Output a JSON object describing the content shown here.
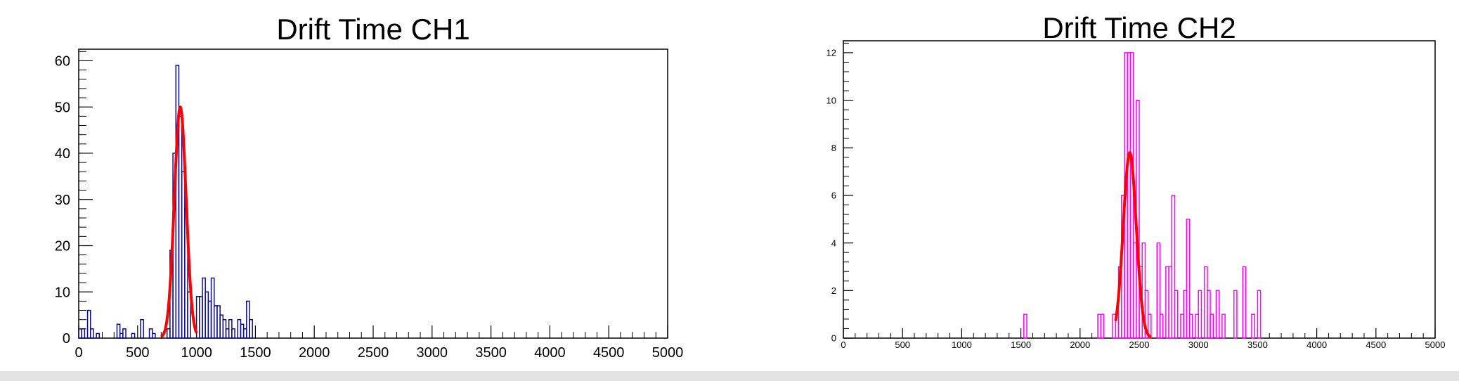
{
  "chart_data": [
    {
      "type": "histogram",
      "title": "Drift Time CH1",
      "xlim": [
        0,
        5000
      ],
      "ylim": [
        0,
        62.5
      ],
      "xticks": [
        0,
        500,
        1000,
        1500,
        2000,
        2500,
        3000,
        3500,
        4000,
        4500,
        5000
      ],
      "yticks": [
        0,
        10,
        20,
        30,
        40,
        50,
        60
      ],
      "bin_width": 25,
      "hist_color": "#0d0d8a",
      "fit_color": "#ff0000",
      "bins": [
        [
          0,
          2
        ],
        [
          25,
          2
        ],
        [
          50,
          0
        ],
        [
          75,
          6
        ],
        [
          100,
          2
        ],
        [
          125,
          0
        ],
        [
          150,
          1
        ],
        [
          175,
          0
        ],
        [
          325,
          3
        ],
        [
          350,
          1
        ],
        [
          375,
          2
        ],
        [
          400,
          0
        ],
        [
          450,
          1
        ],
        [
          500,
          0
        ],
        [
          525,
          4
        ],
        [
          550,
          0
        ],
        [
          600,
          2
        ],
        [
          625,
          1
        ],
        [
          650,
          0
        ],
        [
          750,
          2
        ],
        [
          775,
          19
        ],
        [
          800,
          40
        ],
        [
          825,
          59
        ],
        [
          850,
          48
        ],
        [
          875,
          36
        ],
        [
          900,
          28
        ],
        [
          925,
          10
        ],
        [
          950,
          0
        ],
        [
          1000,
          9
        ],
        [
          1025,
          9
        ],
        [
          1050,
          13
        ],
        [
          1075,
          10
        ],
        [
          1100,
          8
        ],
        [
          1125,
          13
        ],
        [
          1150,
          7
        ],
        [
          1175,
          7
        ],
        [
          1200,
          5
        ],
        [
          1225,
          4
        ],
        [
          1250,
          2
        ],
        [
          1275,
          4
        ],
        [
          1300,
          2
        ],
        [
          1325,
          0
        ],
        [
          1350,
          4
        ],
        [
          1375,
          3
        ],
        [
          1400,
          2
        ],
        [
          1425,
          8
        ],
        [
          1450,
          4
        ],
        [
          1475,
          0
        ]
      ],
      "fit": {
        "function": "gaus",
        "amplitude": 50,
        "mean": 862,
        "sigma": 50,
        "range": [
          700,
          1000
        ]
      }
    },
    {
      "type": "histogram",
      "title": "Drift Time CH2",
      "xlim": [
        0,
        5000
      ],
      "ylim": [
        0,
        12.5
      ],
      "xticks": [
        0,
        500,
        1000,
        1500,
        2000,
        2500,
        3000,
        3500,
        4000,
        4500,
        5000
      ],
      "yticks": [
        0,
        2,
        4,
        6,
        8,
        10,
        12
      ],
      "bin_width": 25,
      "hist_color": "#ff00ff",
      "fit_color": "#ff0000",
      "bins": [
        [
          1525,
          1
        ],
        [
          1550,
          0
        ],
        [
          2150,
          1
        ],
        [
          2175,
          1
        ],
        [
          2200,
          0
        ],
        [
          2275,
          1
        ],
        [
          2300,
          1
        ],
        [
          2325,
          3
        ],
        [
          2350,
          6
        ],
        [
          2375,
          12
        ],
        [
          2400,
          12
        ],
        [
          2425,
          12
        ],
        [
          2450,
          4
        ],
        [
          2475,
          10
        ],
        [
          2500,
          3
        ],
        [
          2525,
          4
        ],
        [
          2550,
          2
        ],
        [
          2575,
          1
        ],
        [
          2600,
          0
        ],
        [
          2625,
          0
        ],
        [
          2650,
          4
        ],
        [
          2675,
          1
        ],
        [
          2700,
          0
        ],
        [
          2725,
          3
        ],
        [
          2750,
          3
        ],
        [
          2775,
          6
        ],
        [
          2800,
          2
        ],
        [
          2825,
          0
        ],
        [
          2850,
          1
        ],
        [
          2875,
          2
        ],
        [
          2900,
          5
        ],
        [
          2925,
          1
        ],
        [
          2950,
          0
        ],
        [
          2975,
          1
        ],
        [
          3000,
          2
        ],
        [
          3025,
          0
        ],
        [
          3050,
          3
        ],
        [
          3075,
          2
        ],
        [
          3100,
          1
        ],
        [
          3125,
          0
        ],
        [
          3150,
          2
        ],
        [
          3175,
          0
        ],
        [
          3200,
          1
        ],
        [
          3225,
          0
        ],
        [
          3300,
          2
        ],
        [
          3325,
          0
        ],
        [
          3375,
          3
        ],
        [
          3400,
          0
        ],
        [
          3450,
          1
        ],
        [
          3475,
          0
        ],
        [
          3500,
          2
        ],
        [
          3525,
          0
        ]
      ],
      "fit": {
        "function": "gaus",
        "amplitude": 7.8,
        "mean": 2420,
        "sigma": 55,
        "range": [
          2300,
          2600
        ]
      }
    }
  ]
}
